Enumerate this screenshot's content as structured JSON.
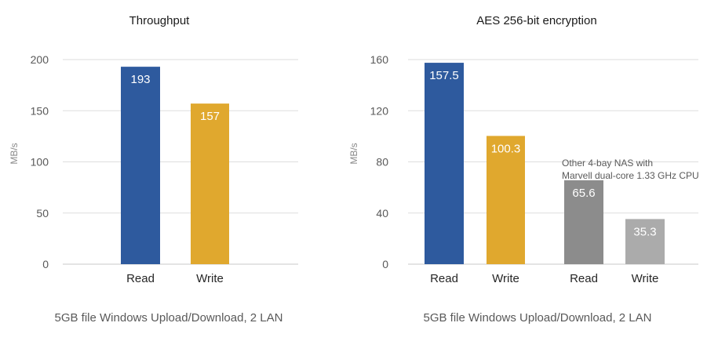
{
  "chart_data": [
    {
      "type": "bar",
      "title": "Throughput",
      "ylabel": "MB/s",
      "xlabel": "5GB file Windows Upload/Download, 2 LAN",
      "ylim": [
        0,
        200
      ],
      "yticks": [
        0,
        50,
        100,
        150,
        200
      ],
      "grid": true,
      "categories": [
        "Read",
        "Write"
      ],
      "values": [
        193,
        157
      ],
      "data_labels": [
        "193",
        "157"
      ],
      "colors": [
        "#2E5A9E",
        "#E0A82E"
      ]
    },
    {
      "type": "bar",
      "title": "AES 256-bit encryption",
      "ylabel": "MB/s",
      "xlabel": "5GB file Windows Upload/Download, 2 LAN",
      "ylim": [
        0,
        160
      ],
      "yticks": [
        0,
        40,
        80,
        120,
        160
      ],
      "grid": true,
      "categories": [
        "Read",
        "Write",
        "Read",
        "Write"
      ],
      "values": [
        157.5,
        100.3,
        65.6,
        35.3
      ],
      "data_labels": [
        "157.5",
        "100.3",
        "65.6",
        "35.3"
      ],
      "colors": [
        "#2E5A9E",
        "#E0A82E",
        "#8C8C8C",
        "#ABABAB"
      ],
      "annotations": [
        {
          "lines": [
            "Other 4-bay NAS with",
            "Marvell dual-core 1.33 GHz CPU"
          ]
        }
      ]
    }
  ]
}
